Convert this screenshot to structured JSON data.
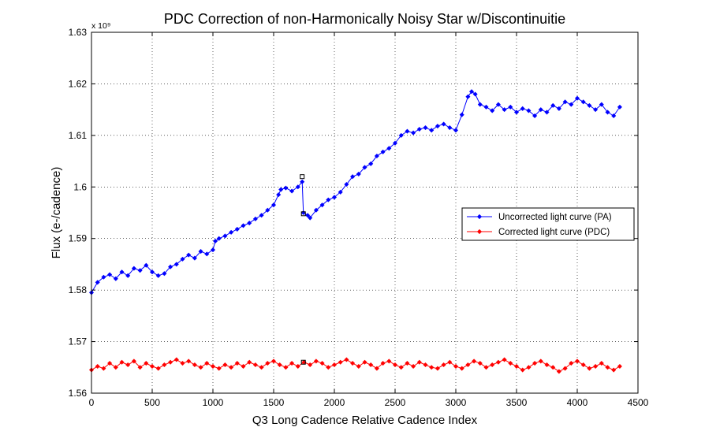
{
  "chart_data": {
    "type": "line",
    "title": "PDC Correction of non-Harmonically Noisy Star w/Discontinuitie",
    "xlabel": "Q3 Long Cadence Relative Cadence Index",
    "ylabel": "Flux (e-/cadence)",
    "y_exponent_label": "x 10⁹",
    "xlim": [
      0,
      4500
    ],
    "ylim": [
      1.56,
      1.63
    ],
    "grid": true,
    "legend_position": "right",
    "x_ticks": [
      "0",
      "500",
      "1000",
      "1500",
      "2000",
      "2500",
      "3000",
      "3500",
      "4000",
      "4500"
    ],
    "y_ticks": [
      "1.56",
      "1.57",
      "1.58",
      "1.59",
      "1.6",
      "1.61",
      "1.62",
      "1.63"
    ],
    "series": [
      {
        "name": "Uncorrected light curve (PA)",
        "color": "#0000ff",
        "marker": "diamond",
        "x": [
          0,
          50,
          100,
          150,
          200,
          250,
          300,
          350,
          400,
          450,
          500,
          550,
          600,
          650,
          700,
          750,
          800,
          850,
          900,
          950,
          1000,
          1020,
          1050,
          1100,
          1150,
          1200,
          1250,
          1300,
          1350,
          1400,
          1450,
          1500,
          1540,
          1560,
          1600,
          1650,
          1700,
          1735,
          1745,
          1780,
          1800,
          1850,
          1900,
          1950,
          2000,
          2050,
          2100,
          2150,
          2200,
          2250,
          2300,
          2350,
          2400,
          2450,
          2500,
          2550,
          2600,
          2650,
          2700,
          2750,
          2800,
          2850,
          2900,
          2950,
          3000,
          3050,
          3100,
          3130,
          3160,
          3200,
          3250,
          3300,
          3350,
          3400,
          3450,
          3500,
          3550,
          3600,
          3650,
          3700,
          3750,
          3800,
          3850,
          3900,
          3950,
          4000,
          4050,
          4100,
          4150,
          4200,
          4250,
          4300,
          4350
        ],
        "y": [
          1.5795,
          1.5815,
          1.5825,
          1.583,
          1.5822,
          1.5835,
          1.5828,
          1.5842,
          1.5838,
          1.5848,
          1.5835,
          1.5828,
          1.5832,
          1.5845,
          1.585,
          1.586,
          1.5868,
          1.5862,
          1.5875,
          1.587,
          1.5878,
          1.5895,
          1.59,
          1.5905,
          1.5912,
          1.5918,
          1.5925,
          1.593,
          1.5938,
          1.5945,
          1.5955,
          1.5965,
          1.5985,
          1.5995,
          1.5998,
          1.5992,
          1.6,
          1.601,
          1.595,
          1.5945,
          1.594,
          1.5955,
          1.5965,
          1.5975,
          1.598,
          1.599,
          1.6005,
          1.602,
          1.6025,
          1.6038,
          1.6045,
          1.606,
          1.6068,
          1.6075,
          1.6085,
          1.61,
          1.6108,
          1.6105,
          1.6112,
          1.6115,
          1.611,
          1.6118,
          1.6122,
          1.6115,
          1.611,
          1.614,
          1.6175,
          1.6185,
          1.618,
          1.616,
          1.6155,
          1.6148,
          1.616,
          1.615,
          1.6155,
          1.6145,
          1.6152,
          1.6148,
          1.6138,
          1.615,
          1.6145,
          1.6158,
          1.6152,
          1.6165,
          1.616,
          1.6172,
          1.6165,
          1.6158,
          1.615,
          1.616,
          1.6145,
          1.6138,
          1.6155
        ]
      },
      {
        "name": "Corrected light curve (PDC)",
        "color": "#ff0000",
        "marker": "diamond",
        "x": [
          0,
          50,
          100,
          150,
          200,
          250,
          300,
          350,
          400,
          450,
          500,
          550,
          600,
          650,
          700,
          750,
          800,
          850,
          900,
          950,
          1000,
          1050,
          1100,
          1150,
          1200,
          1250,
          1300,
          1350,
          1400,
          1450,
          1500,
          1550,
          1600,
          1650,
          1700,
          1750,
          1800,
          1850,
          1900,
          1950,
          2000,
          2050,
          2100,
          2150,
          2200,
          2250,
          2300,
          2350,
          2400,
          2450,
          2500,
          2550,
          2600,
          2650,
          2700,
          2750,
          2800,
          2850,
          2900,
          2950,
          3000,
          3050,
          3100,
          3150,
          3200,
          3250,
          3300,
          3350,
          3400,
          3450,
          3500,
          3550,
          3600,
          3650,
          3700,
          3750,
          3800,
          3850,
          3900,
          3950,
          4000,
          4050,
          4100,
          4150,
          4200,
          4250,
          4300,
          4350
        ],
        "y": [
          1.5645,
          1.5652,
          1.5648,
          1.5658,
          1.565,
          1.566,
          1.5655,
          1.5662,
          1.565,
          1.5658,
          1.5652,
          1.5648,
          1.5655,
          1.566,
          1.5665,
          1.5658,
          1.5662,
          1.5655,
          1.565,
          1.5658,
          1.5652,
          1.5648,
          1.5655,
          1.565,
          1.5658,
          1.5652,
          1.566,
          1.5655,
          1.565,
          1.5658,
          1.5662,
          1.5655,
          1.565,
          1.5658,
          1.5652,
          1.566,
          1.5655,
          1.5662,
          1.5658,
          1.565,
          1.5655,
          1.566,
          1.5665,
          1.5658,
          1.5652,
          1.566,
          1.5655,
          1.5648,
          1.5658,
          1.5662,
          1.5655,
          1.565,
          1.5658,
          1.5652,
          1.566,
          1.5655,
          1.565,
          1.5648,
          1.5655,
          1.566,
          1.5652,
          1.5648,
          1.5655,
          1.5662,
          1.5658,
          1.565,
          1.5655,
          1.566,
          1.5665,
          1.5658,
          1.5652,
          1.5645,
          1.565,
          1.5658,
          1.5662,
          1.5655,
          1.565,
          1.5642,
          1.5648,
          1.5658,
          1.5662,
          1.5655,
          1.5648,
          1.5652,
          1.5658,
          1.565,
          1.5645,
          1.5652
        ]
      }
    ],
    "annotations": [
      {
        "type": "square-marker",
        "x": 1735,
        "y": 1.602
      },
      {
        "type": "square-marker",
        "x": 1745,
        "y": 1.5948
      },
      {
        "type": "square-marker",
        "x": 1745,
        "y": 1.566
      }
    ]
  }
}
